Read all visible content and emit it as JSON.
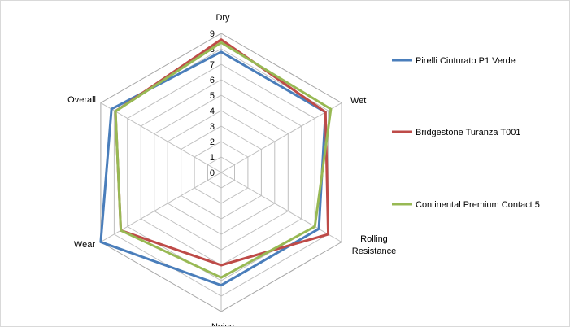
{
  "chart_data": {
    "type": "radar",
    "title": "",
    "axes": [
      "Dry",
      "Wet",
      "Rolling Resistance",
      "Noise",
      "Wear",
      "Overall"
    ],
    "rlim": [
      0,
      9
    ],
    "ticks": [
      0,
      1,
      2,
      3,
      4,
      5,
      6,
      7,
      8,
      9
    ],
    "grid": true,
    "legend": "right",
    "series": [
      {
        "name": "Pirelli Cinturato P1 Verde",
        "color": "#4a7ebb",
        "values": [
          7.8,
          7.8,
          7.3,
          7.3,
          9.0,
          8.2
        ]
      },
      {
        "name": "Bridgestone Turanza T001",
        "color": "#be4b48",
        "values": [
          8.6,
          7.8,
          8.0,
          6.0,
          7.5,
          7.9
        ]
      },
      {
        "name": "Continental Premium Contact 5",
        "color": "#98b954",
        "values": [
          8.4,
          8.2,
          7.0,
          6.8,
          7.5,
          7.9
        ]
      }
    ]
  }
}
